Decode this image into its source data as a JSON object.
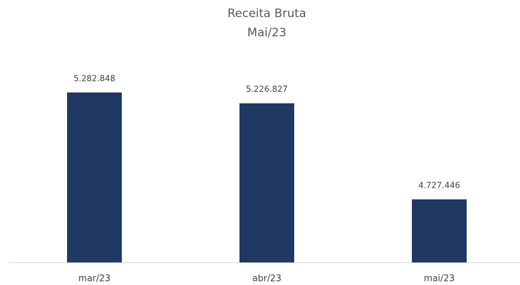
{
  "chart_data": {
    "type": "bar",
    "title": "Receita Bruta",
    "subtitle": "Mai/23",
    "categories": [
      "mar/23",
      "abr/23",
      "mai/23"
    ],
    "values": [
      5282848,
      5226827,
      4727446
    ],
    "value_labels": [
      "5.282.848",
      "5.226.827",
      "4.727.446"
    ],
    "color": "#1f3864",
    "ylim": [
      4400000,
      5500000
    ]
  }
}
